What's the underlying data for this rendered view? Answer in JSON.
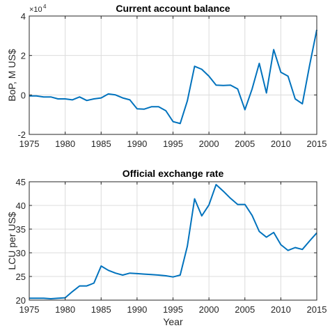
{
  "chart_data": [
    {
      "type": "line",
      "title": "Current account balance",
      "xlabel": "",
      "ylabel": "BoP, M US$",
      "y_exponent_label": "×10",
      "y_exponent_power": "4",
      "xlim": [
        1975,
        2015
      ],
      "ylim": [
        -2,
        4
      ],
      "xticks": [
        1975,
        1980,
        1985,
        1990,
        1995,
        2000,
        2005,
        2010,
        2015
      ],
      "yticks": [
        -2,
        0,
        2,
        4
      ],
      "grid": true,
      "color": "#0072BD",
      "x": [
        1975,
        1976,
        1977,
        1978,
        1979,
        1980,
        1981,
        1982,
        1983,
        1984,
        1985,
        1986,
        1987,
        1988,
        1989,
        1990,
        1991,
        1992,
        1993,
        1994,
        1995,
        1996,
        1997,
        1998,
        1999,
        2000,
        2001,
        2002,
        2003,
        2004,
        2005,
        2006,
        2007,
        2008,
        2009,
        2010,
        2011,
        2012,
        2013,
        2014,
        2015
      ],
      "y": [
        -0.05,
        -0.05,
        -0.1,
        -0.1,
        -0.2,
        -0.2,
        -0.25,
        -0.1,
        -0.28,
        -0.2,
        -0.15,
        0.05,
        0.0,
        -0.15,
        -0.25,
        -0.7,
        -0.72,
        -0.6,
        -0.6,
        -0.8,
        -1.35,
        -1.45,
        -0.3,
        1.45,
        1.3,
        0.95,
        0.5,
        0.48,
        0.5,
        0.3,
        -0.75,
        0.3,
        1.6,
        0.1,
        2.3,
        1.15,
        0.95,
        -0.2,
        -0.45,
        1.5,
        3.3
      ]
    },
    {
      "type": "line",
      "title": "Official exchange rate",
      "xlabel": "Year",
      "ylabel": "LCU per US$",
      "xlim": [
        1975,
        2015
      ],
      "ylim": [
        20,
        45
      ],
      "xticks": [
        1975,
        1980,
        1985,
        1990,
        1995,
        2000,
        2005,
        2010,
        2015
      ],
      "yticks": [
        20,
        25,
        30,
        35,
        40,
        45
      ],
      "grid": true,
      "color": "#0072BD",
      "x": [
        1975,
        1976,
        1977,
        1978,
        1979,
        1980,
        1981,
        1982,
        1983,
        1984,
        1985,
        1986,
        1987,
        1988,
        1989,
        1990,
        1991,
        1992,
        1993,
        1994,
        1995,
        1996,
        1997,
        1998,
        1999,
        2000,
        2001,
        2002,
        2003,
        2004,
        2005,
        2006,
        2007,
        2008,
        2009,
        2010,
        2011,
        2012,
        2013,
        2014,
        2015
      ],
      "y": [
        20.4,
        20.4,
        20.4,
        20.3,
        20.4,
        20.5,
        21.8,
        23.0,
        23.0,
        23.6,
        27.2,
        26.3,
        25.7,
        25.3,
        25.7,
        25.6,
        25.5,
        25.4,
        25.3,
        25.15,
        24.9,
        25.3,
        31.4,
        41.4,
        37.8,
        40.1,
        44.4,
        43.0,
        41.5,
        40.2,
        40.2,
        37.9,
        34.5,
        33.3,
        34.3,
        31.7,
        30.5,
        31.1,
        30.7,
        32.5,
        34.2
      ]
    }
  ]
}
